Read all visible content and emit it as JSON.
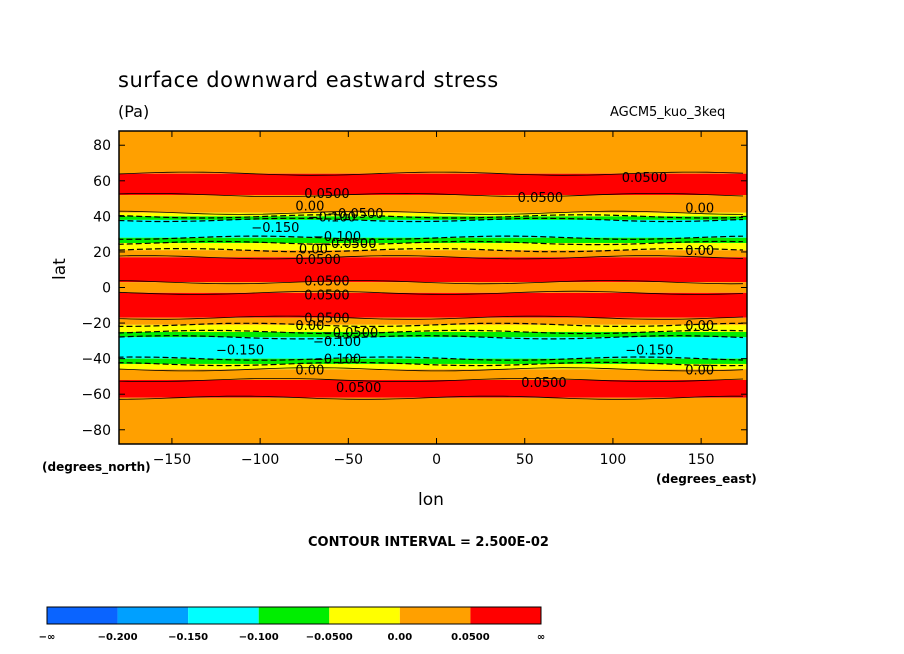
{
  "chart_data": {
    "type": "heatmap",
    "title": "surface downward eastward stress",
    "units": "(Pa)",
    "model_label": "AGCM5_kuo_3keq",
    "xlabel": "lon",
    "ylabel": "lat",
    "x_units": "(degrees_east)",
    "y_units": "(degrees_north)",
    "xlim": [
      -180,
      176
    ],
    "ylim": [
      -88,
      88
    ],
    "x_ticks": [
      "−150",
      "−100",
      "−50",
      "0",
      "50",
      "100",
      "150"
    ],
    "x_tick_values": [
      -150,
      -100,
      -50,
      0,
      50,
      100,
      150
    ],
    "y_ticks": [
      "80",
      "60",
      "40",
      "20",
      "0",
      "−20",
      "−40",
      "−60",
      "−80"
    ],
    "y_tick_values": [
      80,
      60,
      40,
      20,
      0,
      -20,
      -40,
      -60,
      -80
    ],
    "contour_interval": "CONTOUR INTERVAL = 2.500E-02",
    "colorbar": {
      "colors": [
        "#0a64ff",
        "#00a0ff",
        "#00ffff",
        "#00ee00",
        "#ffff00",
        "#ffa000",
        "#ff0000"
      ],
      "labels": [
        "−∞",
        "−0.200",
        "−0.150",
        "−0.100",
        "−0.0500",
        "0.00",
        "0.0500",
        "∞"
      ]
    },
    "contour_labels": [
      {
        "text": "0.0500",
        "lon": 105,
        "lat": 62
      },
      {
        "text": "0.0500",
        "lon": -75,
        "lat": 53
      },
      {
        "text": "0.0500",
        "lon": 46,
        "lat": 51
      },
      {
        "text": "0.00",
        "lon": 141,
        "lat": 45
      },
      {
        "text": "0.00",
        "lon": -80,
        "lat": 46
      },
      {
        "text": "−0.0500",
        "lon": -62,
        "lat": 42
      },
      {
        "text": "−0.100",
        "lon": -73,
        "lat": 40
      },
      {
        "text": "−0.150",
        "lon": -105,
        "lat": 34
      },
      {
        "text": "−0.100",
        "lon": -70,
        "lat": 29
      },
      {
        "text": "−0.0500",
        "lon": -66,
        "lat": 25
      },
      {
        "text": "0.00",
        "lon": -78,
        "lat": 22
      },
      {
        "text": "0.00",
        "lon": 141,
        "lat": 21
      },
      {
        "text": "0.0500",
        "lon": -80,
        "lat": 16
      },
      {
        "text": "0.0500",
        "lon": -75,
        "lat": 4
      },
      {
        "text": "0.0500",
        "lon": -75,
        "lat": -4
      },
      {
        "text": "0.0500",
        "lon": -75,
        "lat": -17
      },
      {
        "text": "0.00",
        "lon": -80,
        "lat": -21
      },
      {
        "text": "0.00",
        "lon": 141,
        "lat": -21
      },
      {
        "text": "−0.0500",
        "lon": -65,
        "lat": -25
      },
      {
        "text": "−0.100",
        "lon": -70,
        "lat": -30
      },
      {
        "text": "−0.150",
        "lon": -125,
        "lat": -35
      },
      {
        "text": "−0.150",
        "lon": 107,
        "lat": -35
      },
      {
        "text": "−0.100",
        "lon": -70,
        "lat": -40
      },
      {
        "text": "0.00",
        "lon": -80,
        "lat": -46
      },
      {
        "text": "0.00",
        "lon": 141,
        "lat": -46
      },
      {
        "text": "0.0500",
        "lon": -57,
        "lat": -56
      },
      {
        "text": "0.0500",
        "lon": 48,
        "lat": -53
      }
    ],
    "zonal_bands": [
      {
        "lat_min": 64,
        "lat_max": 88,
        "level": "0.00 to 0.0500",
        "color": "#ffa000"
      },
      {
        "lat_min": 52,
        "lat_max": 64,
        "level": "> 0.0500",
        "color": "#ff0000"
      },
      {
        "lat_min": 42,
        "lat_max": 52,
        "level": "0.00 to 0.0500",
        "color": "#ffa000"
      },
      {
        "lat_min": 40,
        "lat_max": 42,
        "level": "-0.0500 to 0.00",
        "color": "#ffff00"
      },
      {
        "lat_min": 38,
        "lat_max": 40,
        "level": "-0.100 to -0.0500",
        "color": "#00ee00"
      },
      {
        "lat_min": 28,
        "lat_max": 38,
        "level": "-0.150 to -0.100",
        "color": "#00ffff"
      },
      {
        "lat_min": 25,
        "lat_max": 28,
        "level": "-0.100 to -0.0500",
        "color": "#00ee00"
      },
      {
        "lat_min": 21,
        "lat_max": 25,
        "level": "-0.0500 to 0.00",
        "color": "#ffff00"
      },
      {
        "lat_min": 17,
        "lat_max": 21,
        "level": "0.00 to 0.0500",
        "color": "#ffa000"
      },
      {
        "lat_min": 3,
        "lat_max": 17,
        "level": "> 0.0500",
        "color": "#ff0000"
      },
      {
        "lat_min": -3,
        "lat_max": 3,
        "level": "0.00 to 0.0500",
        "color": "#ffa000"
      },
      {
        "lat_min": -17,
        "lat_max": -3,
        "level": "> 0.0500",
        "color": "#ff0000"
      },
      {
        "lat_min": -21,
        "lat_max": -17,
        "level": "0.00 to 0.0500",
        "color": "#ffa000"
      },
      {
        "lat_min": -25,
        "lat_max": -21,
        "level": "-0.0500 to 0.00",
        "color": "#ffff00"
      },
      {
        "lat_min": -28,
        "lat_max": -25,
        "level": "-0.100 to -0.0500",
        "color": "#00ee00"
      },
      {
        "lat_min": -40,
        "lat_max": -28,
        "level": "-0.150 to -0.100",
        "color": "#00ffff"
      },
      {
        "lat_min": -43,
        "lat_max": -40,
        "level": "-0.100 to -0.0500",
        "color": "#00ee00"
      },
      {
        "lat_min": -46,
        "lat_max": -43,
        "level": "-0.0500 to 0.00",
        "color": "#ffff00"
      },
      {
        "lat_min": -52,
        "lat_max": -46,
        "level": "0.00 to 0.0500",
        "color": "#ffa000"
      },
      {
        "lat_min": -62,
        "lat_max": -52,
        "level": "> 0.0500",
        "color": "#ff0000"
      },
      {
        "lat_min": -88,
        "lat_max": -62,
        "level": "0.00 to 0.0500",
        "color": "#ffa000"
      }
    ]
  }
}
